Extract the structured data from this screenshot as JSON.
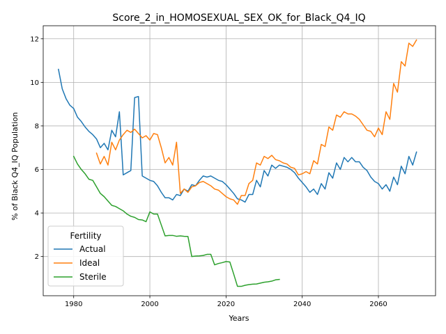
{
  "chart_data": {
    "type": "line",
    "title": "Score_2_in_HOMOSEXUAL_SEX_OK_for_Black_Q4_IQ",
    "xlabel": "Years",
    "ylabel": "% of Black Q4_IQ Population",
    "xlim": [
      1972,
      2075
    ],
    "ylim": [
      0.2,
      12.6
    ],
    "xticks": [
      1980,
      2000,
      2020,
      2040,
      2060
    ],
    "yticks": [
      2,
      4,
      6,
      8,
      10,
      12
    ],
    "grid": true,
    "legend": {
      "title": "Fertility",
      "placement": "lower-left"
    },
    "series": [
      {
        "name": "Actual",
        "color": "#1f77b4",
        "points": [
          [
            1976,
            10.6
          ],
          [
            1977,
            9.7
          ],
          [
            1978,
            9.25
          ],
          [
            1979,
            8.95
          ],
          [
            1980,
            8.8
          ],
          [
            1981,
            8.4
          ],
          [
            1982,
            8.2
          ],
          [
            1983,
            7.95
          ],
          [
            1984,
            7.75
          ],
          [
            1985,
            7.6
          ],
          [
            1986,
            7.4
          ],
          [
            1987,
            7.0
          ],
          [
            1988,
            7.2
          ],
          [
            1989,
            6.9
          ],
          [
            1990,
            7.8
          ],
          [
            1991,
            7.5
          ],
          [
            1992,
            8.65
          ],
          [
            1993,
            5.75
          ],
          [
            1994,
            5.85
          ],
          [
            1995,
            5.95
          ],
          [
            1996,
            9.3
          ],
          [
            1997,
            9.35
          ],
          [
            1998,
            5.7
          ],
          [
            1999,
            5.6
          ],
          [
            2000,
            5.5
          ],
          [
            2001,
            5.45
          ],
          [
            2002,
            5.25
          ],
          [
            2003,
            4.95
          ],
          [
            2004,
            4.7
          ],
          [
            2005,
            4.7
          ],
          [
            2006,
            4.6
          ],
          [
            2007,
            4.85
          ],
          [
            2008,
            4.8
          ],
          [
            2009,
            5.1
          ],
          [
            2010,
            5.0
          ],
          [
            2011,
            5.3
          ],
          [
            2012,
            5.25
          ],
          [
            2013,
            5.5
          ],
          [
            2014,
            5.7
          ],
          [
            2015,
            5.65
          ],
          [
            2016,
            5.7
          ],
          [
            2017,
            5.6
          ],
          [
            2018,
            5.5
          ],
          [
            2019,
            5.45
          ],
          [
            2020,
            5.3
          ],
          [
            2021,
            5.1
          ],
          [
            2022,
            4.9
          ],
          [
            2023,
            4.65
          ],
          [
            2024,
            4.6
          ],
          [
            2025,
            4.5
          ],
          [
            2026,
            4.85
          ],
          [
            2027,
            4.85
          ],
          [
            2028,
            5.5
          ],
          [
            2029,
            5.2
          ],
          [
            2030,
            5.95
          ],
          [
            2031,
            5.7
          ],
          [
            2032,
            6.2
          ],
          [
            2033,
            6.05
          ],
          [
            2034,
            6.2
          ],
          [
            2035,
            6.15
          ],
          [
            2036,
            6.1
          ],
          [
            2037,
            6.0
          ],
          [
            2038,
            5.85
          ],
          [
            2039,
            5.6
          ],
          [
            2040,
            5.4
          ],
          [
            2041,
            5.2
          ],
          [
            2042,
            4.95
          ],
          [
            2043,
            5.1
          ],
          [
            2044,
            4.85
          ],
          [
            2045,
            5.35
          ],
          [
            2046,
            5.1
          ],
          [
            2047,
            5.85
          ],
          [
            2048,
            5.6
          ],
          [
            2049,
            6.3
          ],
          [
            2050,
            6.0
          ],
          [
            2051,
            6.55
          ],
          [
            2052,
            6.35
          ],
          [
            2053,
            6.55
          ],
          [
            2054,
            6.35
          ],
          [
            2055,
            6.35
          ],
          [
            2056,
            6.1
          ],
          [
            2057,
            5.95
          ],
          [
            2058,
            5.65
          ],
          [
            2059,
            5.45
          ],
          [
            2060,
            5.35
          ],
          [
            2061,
            5.1
          ],
          [
            2062,
            5.3
          ],
          [
            2063,
            5.0
          ],
          [
            2064,
            5.65
          ],
          [
            2065,
            5.3
          ],
          [
            2066,
            6.15
          ],
          [
            2067,
            5.8
          ],
          [
            2068,
            6.6
          ],
          [
            2069,
            6.2
          ],
          [
            2070,
            6.8
          ]
        ]
      },
      {
        "name": "Ideal",
        "color": "#ff7f0e",
        "points": [
          [
            1986,
            6.75
          ],
          [
            1987,
            6.25
          ],
          [
            1988,
            6.6
          ],
          [
            1989,
            6.2
          ],
          [
            1990,
            7.25
          ],
          [
            1991,
            6.9
          ],
          [
            1992,
            7.35
          ],
          [
            1993,
            7.6
          ],
          [
            1994,
            7.8
          ],
          [
            1995,
            7.7
          ],
          [
            1996,
            7.85
          ],
          [
            1997,
            7.65
          ],
          [
            1998,
            7.45
          ],
          [
            1999,
            7.55
          ],
          [
            2000,
            7.35
          ],
          [
            2001,
            7.65
          ],
          [
            2002,
            7.6
          ],
          [
            2003,
            7.0
          ],
          [
            2004,
            6.3
          ],
          [
            2005,
            6.55
          ],
          [
            2006,
            6.2
          ],
          [
            2007,
            7.25
          ],
          [
            2008,
            4.9
          ],
          [
            2009,
            5.1
          ],
          [
            2010,
            4.95
          ],
          [
            2011,
            5.2
          ],
          [
            2012,
            5.25
          ],
          [
            2013,
            5.4
          ],
          [
            2014,
            5.45
          ],
          [
            2015,
            5.35
          ],
          [
            2016,
            5.25
          ],
          [
            2017,
            5.1
          ],
          [
            2018,
            5.05
          ],
          [
            2019,
            4.9
          ],
          [
            2020,
            4.75
          ],
          [
            2021,
            4.65
          ],
          [
            2022,
            4.6
          ],
          [
            2023,
            4.4
          ],
          [
            2024,
            4.8
          ],
          [
            2025,
            4.8
          ],
          [
            2026,
            5.35
          ],
          [
            2027,
            5.5
          ],
          [
            2028,
            6.3
          ],
          [
            2029,
            6.2
          ],
          [
            2030,
            6.6
          ],
          [
            2031,
            6.5
          ],
          [
            2032,
            6.65
          ],
          [
            2033,
            6.45
          ],
          [
            2034,
            6.4
          ],
          [
            2035,
            6.3
          ],
          [
            2036,
            6.25
          ],
          [
            2037,
            6.1
          ],
          [
            2038,
            6.05
          ],
          [
            2039,
            5.75
          ],
          [
            2040,
            5.8
          ],
          [
            2041,
            5.9
          ],
          [
            2042,
            5.8
          ],
          [
            2043,
            6.4
          ],
          [
            2044,
            6.25
          ],
          [
            2045,
            7.15
          ],
          [
            2046,
            7.05
          ],
          [
            2047,
            7.95
          ],
          [
            2048,
            7.8
          ],
          [
            2049,
            8.5
          ],
          [
            2050,
            8.4
          ],
          [
            2051,
            8.65
          ],
          [
            2052,
            8.55
          ],
          [
            2053,
            8.55
          ],
          [
            2054,
            8.45
          ],
          [
            2055,
            8.3
          ],
          [
            2056,
            8.05
          ],
          [
            2057,
            7.8
          ],
          [
            2058,
            7.75
          ],
          [
            2059,
            7.5
          ],
          [
            2060,
            7.9
          ],
          [
            2061,
            7.6
          ],
          [
            2062,
            8.65
          ],
          [
            2063,
            8.3
          ],
          [
            2064,
            9.95
          ],
          [
            2065,
            9.55
          ],
          [
            2066,
            10.95
          ],
          [
            2067,
            10.75
          ],
          [
            2068,
            11.8
          ],
          [
            2069,
            11.65
          ],
          [
            2070,
            11.95
          ]
        ]
      },
      {
        "name": "Sterile",
        "color": "#2ca02c",
        "points": [
          [
            1980,
            6.6
          ],
          [
            1981,
            6.25
          ],
          [
            1982,
            6.0
          ],
          [
            1983,
            5.8
          ],
          [
            1984,
            5.55
          ],
          [
            1985,
            5.5
          ],
          [
            1986,
            5.2
          ],
          [
            1987,
            4.9
          ],
          [
            1988,
            4.75
          ],
          [
            1989,
            4.55
          ],
          [
            1990,
            4.35
          ],
          [
            1991,
            4.3
          ],
          [
            1992,
            4.2
          ],
          [
            1993,
            4.1
          ],
          [
            1994,
            3.95
          ],
          [
            1995,
            3.85
          ],
          [
            1996,
            3.8
          ],
          [
            1997,
            3.7
          ],
          [
            1998,
            3.68
          ],
          [
            1999,
            3.6
          ],
          [
            2000,
            4.05
          ],
          [
            2001,
            3.95
          ],
          [
            2002,
            3.95
          ],
          [
            2003,
            3.45
          ],
          [
            2004,
            2.95
          ],
          [
            2005,
            2.97
          ],
          [
            2006,
            2.97
          ],
          [
            2007,
            2.93
          ],
          [
            2008,
            2.95
          ],
          [
            2009,
            2.93
          ],
          [
            2010,
            2.92
          ],
          [
            2011,
            2.0
          ],
          [
            2012,
            2.02
          ],
          [
            2013,
            2.03
          ],
          [
            2014,
            2.05
          ],
          [
            2015,
            2.1
          ],
          [
            2016,
            2.1
          ],
          [
            2017,
            1.62
          ],
          [
            2018,
            1.68
          ],
          [
            2019,
            1.72
          ],
          [
            2020,
            1.77
          ],
          [
            2021,
            1.75
          ],
          [
            2022,
            1.2
          ],
          [
            2023,
            0.63
          ],
          [
            2024,
            0.63
          ],
          [
            2025,
            0.68
          ],
          [
            2026,
            0.71
          ],
          [
            2027,
            0.73
          ],
          [
            2028,
            0.74
          ],
          [
            2029,
            0.78
          ],
          [
            2030,
            0.82
          ],
          [
            2031,
            0.84
          ],
          [
            2032,
            0.87
          ],
          [
            2033,
            0.93
          ],
          [
            2034,
            0.95
          ]
        ]
      }
    ]
  }
}
